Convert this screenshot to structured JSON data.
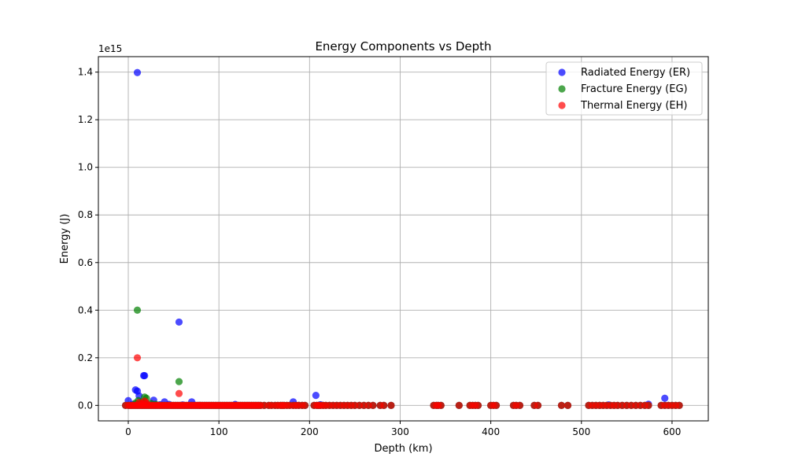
{
  "chart_data": {
    "type": "scatter",
    "title": "Energy Components vs Depth",
    "xlabel": "Depth (km)",
    "ylabel": "Energy (J)",
    "y_offset_label": "1e15",
    "xlim": [
      -33,
      640
    ],
    "ylim": [
      -0.065,
      1.465
    ],
    "y_scale_note": "values in units of 1e15 J",
    "xticks": [
      0,
      100,
      200,
      300,
      400,
      500,
      600
    ],
    "yticks": [
      0.0,
      0.2,
      0.4,
      0.6,
      0.8,
      1.0,
      1.2,
      1.4
    ],
    "grid": true,
    "legend_position": "top-right",
    "series": [
      {
        "name": "Radiated Energy (ER)",
        "color": "#0000ff",
        "points": [
          [
            0,
            0.02
          ],
          [
            10,
            1.398
          ],
          [
            8,
            0.065
          ],
          [
            10,
            0.06
          ],
          [
            12,
            0.04
          ],
          [
            17,
            0.125
          ],
          [
            18,
            0.125
          ],
          [
            28,
            0.022
          ],
          [
            40,
            0.015
          ],
          [
            56,
            0.35
          ],
          [
            70,
            0.015
          ],
          [
            182,
            0.015
          ],
          [
            207,
            0.042
          ],
          [
            574,
            0.005
          ],
          [
            592,
            0.03
          ],
          [
            5,
            0.005
          ],
          [
            15,
            0.008
          ],
          [
            20,
            0.005
          ],
          [
            35,
            0.003
          ],
          [
            45,
            0.004
          ],
          [
            60,
            0.002
          ],
          [
            118,
            0.004
          ],
          [
            212,
            0.003
          ],
          [
            530,
            0.002
          ]
        ]
      },
      {
        "name": "Fracture Energy (EG)",
        "color": "#008000",
        "points": [
          [
            10,
            0.4
          ],
          [
            56,
            0.1
          ],
          [
            18,
            0.035
          ],
          [
            20,
            0.03
          ],
          [
            11,
            0.02
          ],
          [
            15,
            0.015
          ],
          [
            8,
            0.01
          ],
          [
            25,
            0.008
          ],
          [
            30,
            0.005
          ]
        ]
      },
      {
        "name": "Thermal Energy (EH)",
        "color": "#ff0000",
        "points": [
          [
            10,
            0.2
          ],
          [
            56,
            0.05
          ],
          [
            18,
            0.018
          ],
          [
            12,
            0.012
          ],
          [
            20,
            0.01
          ],
          [
            15,
            0.008
          ]
        ]
      }
    ],
    "baseline_cluster_depths": [
      -3,
      0,
      2,
      4,
      6,
      8,
      10,
      12,
      14,
      16,
      18,
      20,
      22,
      24,
      26,
      28,
      30,
      32,
      34,
      36,
      38,
      40,
      42,
      44,
      46,
      48,
      50,
      52,
      54,
      56,
      58,
      60,
      62,
      64,
      66,
      68,
      70,
      72,
      74,
      76,
      78,
      80,
      82,
      84,
      86,
      88,
      90,
      92,
      94,
      96,
      98,
      100,
      102,
      104,
      106,
      108,
      110,
      112,
      114,
      116,
      118,
      120,
      122,
      124,
      126,
      128,
      130,
      132,
      134,
      136,
      138,
      140,
      142,
      144,
      146,
      150,
      155,
      158,
      162,
      165,
      168,
      170,
      172,
      175,
      178,
      182,
      185,
      188,
      192,
      195,
      205,
      208,
      210,
      212,
      215,
      218,
      222,
      226,
      230,
      234,
      238,
      242,
      246,
      250,
      255,
      260,
      265,
      270,
      278,
      282,
      290,
      337,
      340,
      342,
      345,
      365,
      377,
      380,
      383,
      386,
      400,
      403,
      406,
      425,
      428,
      432,
      448,
      452,
      478,
      485,
      508,
      512,
      516,
      520,
      524,
      528,
      532,
      536,
      540,
      545,
      550,
      555,
      560,
      565,
      570,
      574,
      588,
      592,
      596,
      600,
      604,
      608
    ]
  }
}
